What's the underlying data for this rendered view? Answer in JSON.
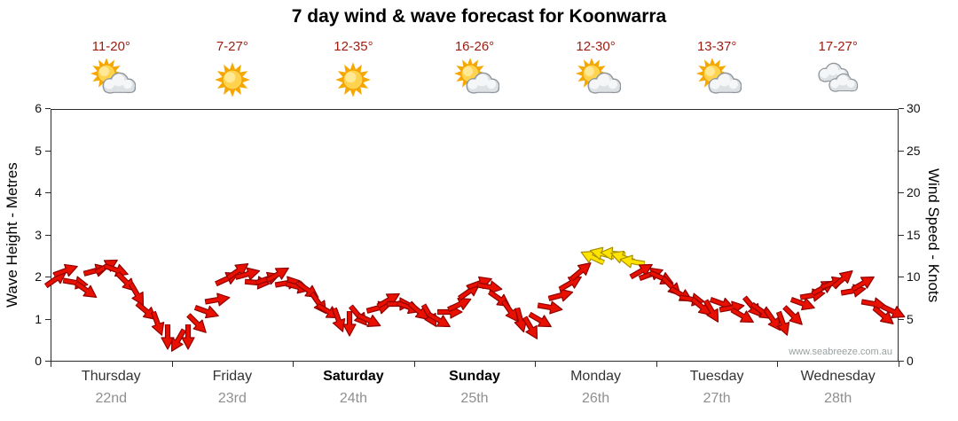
{
  "title": "7 day wind & wave forecast for Koonwarra",
  "watermark": "www.seabreeze.com.au",
  "text_colors": {
    "temp": "#9b1c0f",
    "day_name": "#333333",
    "day_date": "#8f8f8f"
  },
  "chart_data": {
    "type": "wind_arrow_timeseries",
    "title": "7 day wind & wave forecast for Koonwarra",
    "left_axis": {
      "label": "Wave Height - Metres",
      "min": 0,
      "max": 6,
      "ticks": [
        0,
        1,
        2,
        3,
        4,
        5,
        6
      ]
    },
    "right_axis": {
      "label": "Wind Speed - Knots",
      "min": 0,
      "max": 30,
      "ticks": [
        0,
        5,
        10,
        15,
        20,
        25,
        30
      ]
    },
    "x_axis": {
      "hours_total": 168,
      "days": [
        {
          "name": "Thursday",
          "date": "22nd",
          "temp": "11-20°",
          "icon": "partly-cloudy",
          "weekend": false
        },
        {
          "name": "Friday",
          "date": "23rd",
          "temp": "7-27°",
          "icon": "sunny",
          "weekend": false
        },
        {
          "name": "Saturday",
          "date": "24th",
          "temp": "12-35°",
          "icon": "sunny",
          "weekend": true
        },
        {
          "name": "Sunday",
          "date": "25th",
          "temp": "16-26°",
          "icon": "partly-cloudy",
          "weekend": true
        },
        {
          "name": "Monday",
          "date": "26th",
          "temp": "12-30°",
          "icon": "partly-cloudy",
          "weekend": false
        },
        {
          "name": "Tuesday",
          "date": "27th",
          "temp": "13-37°",
          "icon": "partly-cloudy",
          "weekend": false
        },
        {
          "name": "Wednesday",
          "date": "28th",
          "temp": "17-27°",
          "icon": "cloudy",
          "weekend": false
        }
      ]
    },
    "yellow_threshold_knots": 12,
    "arrow_colors": {
      "light_wind_fill": "#e81000",
      "light_wind_outline": "#8f0000",
      "moderate_wind_fill": "#ffe400",
      "moderate_wind_outline": "#a88f00"
    },
    "wind_points_columns": [
      "hour",
      "wind_speed_knots",
      "direction_deg"
    ],
    "wind_points": [
      [
        0,
        10,
        -35
      ],
      [
        2,
        11,
        -20
      ],
      [
        4,
        9.5,
        10
      ],
      [
        6,
        8.5,
        35
      ],
      [
        8,
        11,
        -15
      ],
      [
        10,
        11.5,
        -30
      ],
      [
        12,
        11,
        20
      ],
      [
        14,
        9.5,
        45
      ],
      [
        16,
        8,
        60
      ],
      [
        18,
        6,
        40
      ],
      [
        20,
        4.5,
        70
      ],
      [
        22,
        3,
        90
      ],
      [
        24,
        2.5,
        120
      ],
      [
        26,
        3,
        90
      ],
      [
        28,
        4.5,
        45
      ],
      [
        30,
        6,
        20
      ],
      [
        32,
        7.5,
        -10
      ],
      [
        34,
        10,
        -25
      ],
      [
        36,
        11,
        -35
      ],
      [
        38,
        10.5,
        -15
      ],
      [
        40,
        9.5,
        5
      ],
      [
        42,
        10,
        -20
      ],
      [
        44,
        10.5,
        -30
      ],
      [
        46,
        9.5,
        -10
      ],
      [
        48,
        9,
        15
      ],
      [
        50,
        8.5,
        35
      ],
      [
        52,
        7,
        55
      ],
      [
        54,
        6,
        30
      ],
      [
        56,
        5,
        70
      ],
      [
        58,
        4.5,
        90
      ],
      [
        60,
        5.5,
        50
      ],
      [
        62,
        5,
        25
      ],
      [
        64,
        6.5,
        -15
      ],
      [
        66,
        7.5,
        -30
      ],
      [
        68,
        7,
        0
      ],
      [
        70,
        6.5,
        20
      ],
      [
        72,
        6,
        40
      ],
      [
        74,
        5.5,
        60
      ],
      [
        76,
        5,
        30
      ],
      [
        78,
        6,
        0
      ],
      [
        80,
        7,
        -25
      ],
      [
        82,
        8.5,
        -35
      ],
      [
        84,
        9.5,
        -20
      ],
      [
        86,
        9,
        10
      ],
      [
        88,
        7.5,
        35
      ],
      [
        90,
        6,
        55
      ],
      [
        92,
        5,
        75
      ],
      [
        94,
        4,
        60
      ],
      [
        96,
        5,
        30
      ],
      [
        98,
        6.5,
        10
      ],
      [
        100,
        8,
        -15
      ],
      [
        102,
        9.5,
        -30
      ],
      [
        104,
        11,
        -40
      ],
      [
        106,
        12.5,
        205
      ],
      [
        108,
        13,
        195
      ],
      [
        110,
        13,
        185
      ],
      [
        112,
        12.5,
        200
      ],
      [
        114,
        12,
        190
      ],
      [
        116,
        11,
        -30
      ],
      [
        118,
        10.5,
        -20
      ],
      [
        120,
        10,
        25
      ],
      [
        122,
        9,
        45
      ],
      [
        124,
        8,
        30
      ],
      [
        126,
        7.5,
        10
      ],
      [
        128,
        6.5,
        40
      ],
      [
        130,
        6,
        60
      ],
      [
        132,
        7,
        20
      ],
      [
        134,
        6.5,
        -10
      ],
      [
        136,
        5.5,
        30
      ],
      [
        138,
        6.5,
        50
      ],
      [
        140,
        6,
        35
      ],
      [
        142,
        5,
        55
      ],
      [
        144,
        4.5,
        70
      ],
      [
        146,
        5.5,
        45
      ],
      [
        148,
        7,
        20
      ],
      [
        150,
        8,
        -10
      ],
      [
        152,
        9,
        -30
      ],
      [
        154,
        9.5,
        -20
      ],
      [
        156,
        10,
        -40
      ],
      [
        158,
        8.5,
        -10
      ],
      [
        160,
        9.5,
        -30
      ],
      [
        162,
        7,
        10
      ],
      [
        164,
        5.5,
        40
      ],
      [
        166,
        6,
        25
      ]
    ]
  }
}
